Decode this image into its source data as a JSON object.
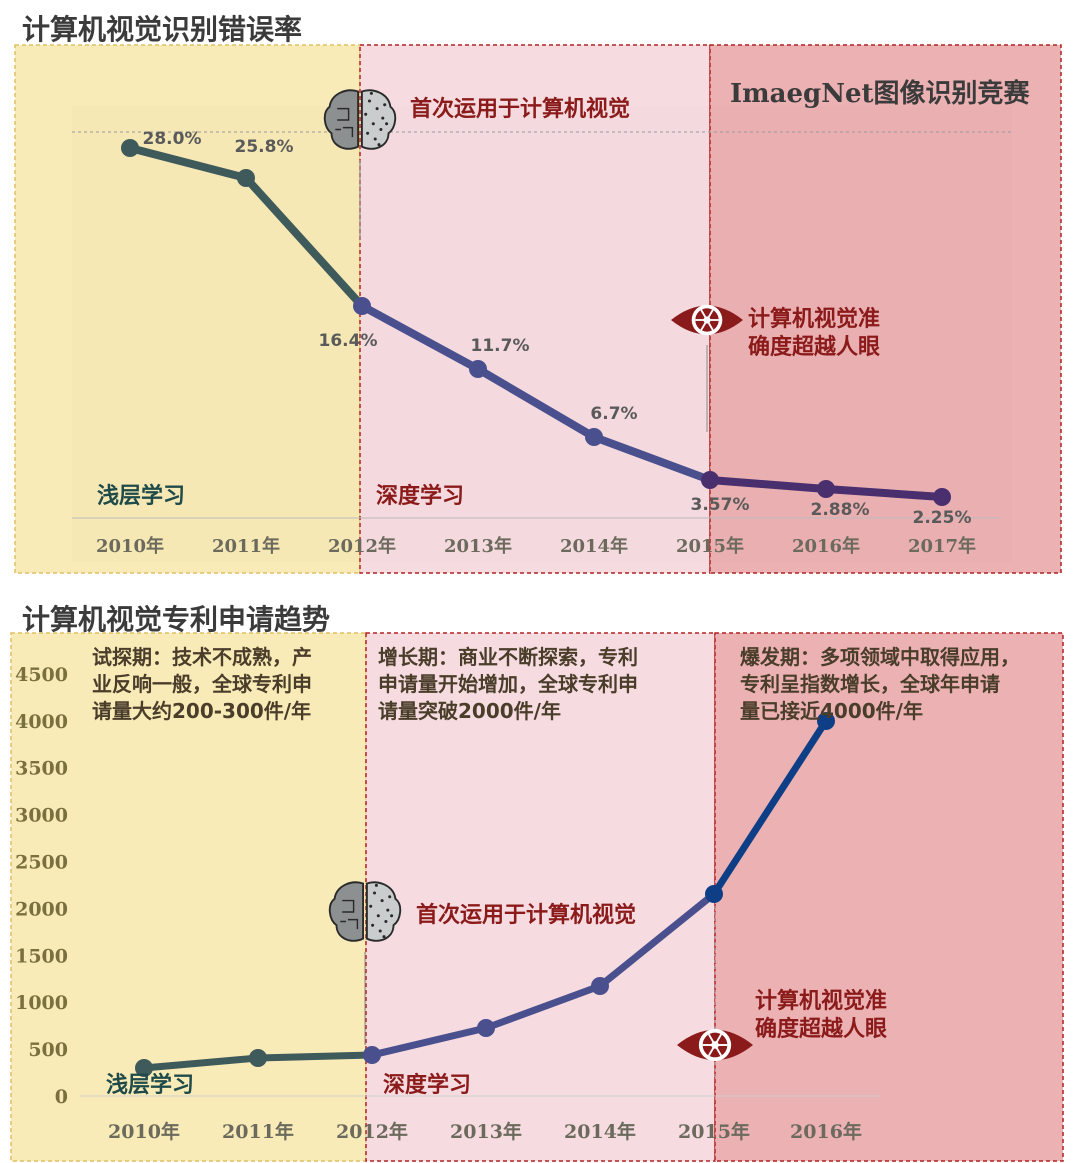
{
  "colors": {
    "phase_shallow": "#f7e7a8",
    "phase_deep": "#f4d6da",
    "phase_explosion": "#e7a3a6",
    "line_shallow": "#3f5a5a",
    "line_deep": "#4a4f8e",
    "line_explosion": "#0e3f86",
    "dark_red": "#8b1a1a",
    "dark_teal": "#1f4a4a",
    "dark_gray": "#3b3b3b",
    "axis_label": "#6b6a5c",
    "yaxis_label": "#7a6f3e"
  },
  "chart_data": [
    {
      "type": "line",
      "title": "计算机视觉识别错误率",
      "categories": [
        "2010年",
        "2011年",
        "2012年",
        "2013年",
        "2014年",
        "2015年",
        "2016年",
        "2017年"
      ],
      "values": [
        28.0,
        25.8,
        16.4,
        11.7,
        6.7,
        3.57,
        2.88,
        2.25
      ],
      "data_labels": [
        "28.0%",
        "25.8%",
        "16.4%",
        "11.7%",
        "6.7%",
        "3.57%",
        "2.88%",
        "2.25%"
      ],
      "ylim": [
        0,
        30
      ],
      "grid": false,
      "phases": [
        {
          "label": "浅层学习",
          "from": "2010年",
          "to": "2012年"
        },
        {
          "label": "深度学习",
          "from": "2012年",
          "to": "2015年"
        },
        {
          "label": "",
          "from": "2015年",
          "to": "2017年"
        }
      ],
      "annotations": {
        "first_use": "首次运用于计算机视觉",
        "accuracy": [
          "计算机视觉准",
          "确度超越人眼"
        ],
        "competition": "ImaegNet图像识别竞赛"
      }
    },
    {
      "type": "line",
      "title": "计算机视觉专利申请趋势",
      "categories": [
        "2010年",
        "2011年",
        "2012年",
        "2013年",
        "2014年",
        "2015年",
        "2016年"
      ],
      "values": [
        300,
        410,
        440,
        720,
        1170,
        2150,
        4000
      ],
      "yticks": [
        0,
        500,
        1000,
        1500,
        2000,
        2500,
        3000,
        3500,
        4000,
        4500
      ],
      "ylim": [
        0,
        4500
      ],
      "grid": false,
      "phases": [
        {
          "label": "浅层学习",
          "from": "2010年",
          "to": "2012年"
        },
        {
          "label": "深度学习",
          "from": "2012年",
          "to": "2015年"
        },
        {
          "label": "",
          "from": "2015年",
          "to": "2016年"
        }
      ],
      "phase_notes": [
        [
          "试探期：技术不成熟，产",
          "业反响一般，全球专利申",
          "请量大约200-300件/年"
        ],
        [
          "增长期：商业不断探索，专利",
          "申请量开始增加，全球专利申",
          "请量突破2000件/年"
        ],
        [
          "爆发期：多项领域中取得应用，",
          "专利呈指数增长，全球年申请",
          "量已接近4000件/年"
        ]
      ],
      "annotations": {
        "first_use": "首次运用于计算机视觉",
        "accuracy": [
          "计算机视觉准",
          "确度超越人眼"
        ]
      }
    }
  ]
}
